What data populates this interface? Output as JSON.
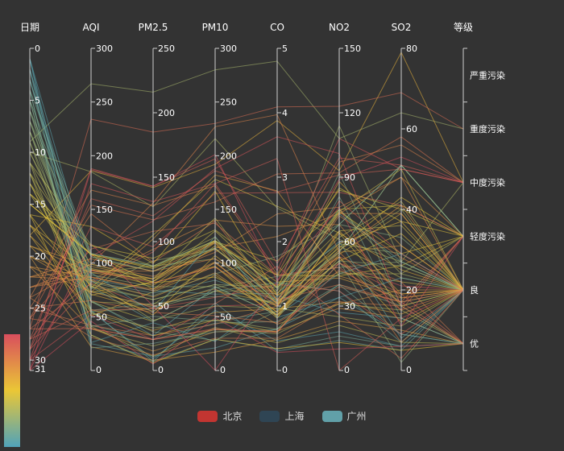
{
  "chart_data": {
    "type": "parallel",
    "title": "",
    "axes": [
      {
        "name": "日期",
        "min": 0,
        "max": 31,
        "inverse": true,
        "ticks": [
          0,
          5,
          10,
          15,
          20,
          25,
          30,
          31
        ]
      },
      {
        "name": "AQI",
        "min": 0,
        "max": 300,
        "ticks": [
          0,
          50,
          100,
          150,
          200,
          250,
          300
        ]
      },
      {
        "name": "PM2.5",
        "min": 0,
        "max": 250,
        "ticks": [
          0,
          50,
          100,
          150,
          200,
          250
        ]
      },
      {
        "name": "PM10",
        "min": 0,
        "max": 300,
        "ticks": [
          0,
          50,
          100,
          150,
          200,
          250,
          300
        ]
      },
      {
        "name": "CO",
        "min": 0,
        "max": 5,
        "ticks": [
          0,
          1,
          2,
          3,
          4,
          5
        ]
      },
      {
        "name": "NO2",
        "min": 0,
        "max": 150,
        "ticks": [
          0,
          30,
          60,
          90,
          120,
          150
        ]
      },
      {
        "name": "SO2",
        "min": 0,
        "max": 80,
        "ticks": [
          0,
          20,
          40,
          60,
          80
        ]
      },
      {
        "name": "等级",
        "type": "category",
        "categories": [
          "优",
          "良",
          "轻度污染",
          "中度污染",
          "重度污染",
          "严重污染"
        ]
      }
    ],
    "legend": [
      {
        "name": "北京",
        "color": "#c23531"
      },
      {
        "name": "上海",
        "color": "#2f4554"
      },
      {
        "name": "广州",
        "color": "#61a0a8"
      }
    ],
    "visual_map": {
      "dimension": "日期",
      "min": 0,
      "max": 31,
      "colors": [
        "#50a3ba",
        "#eac736",
        "#d94e5d"
      ]
    },
    "series": [
      {
        "name": "北京",
        "data": [
          [
            1,
            55,
            9,
            56,
            0.46,
            18,
            6,
            "良"
          ],
          [
            2,
            25,
            11,
            21,
            0.65,
            34,
            9,
            "优"
          ],
          [
            3,
            56,
            7,
            63,
            0.3,
            14,
            5,
            "良"
          ],
          [
            4,
            33,
            7,
            29,
            0.33,
            16,
            6,
            "优"
          ],
          [
            5,
            42,
            24,
            44,
            0.76,
            40,
            16,
            "优"
          ],
          [
            6,
            82,
            58,
            90,
            1.77,
            68,
            33,
            "良"
          ],
          [
            7,
            74,
            49,
            77,
            1.46,
            48,
            27,
            "良"
          ],
          [
            8,
            78,
            55,
            80,
            1.29,
            59,
            29,
            "良"
          ],
          [
            9,
            267,
            216,
            280,
            4.8,
            108,
            64,
            "重度污染"
          ],
          [
            10,
            185,
            127,
            216,
            2.52,
            61,
            27,
            "中度污染"
          ],
          [
            11,
            39,
            19,
            38,
            0.57,
            31,
            15,
            "优"
          ],
          [
            12,
            41,
            11,
            40,
            0.43,
            21,
            7,
            "优"
          ],
          [
            13,
            64,
            38,
            74,
            1.04,
            46,
            22,
            "良"
          ],
          [
            14,
            108,
            79,
            120,
            1.7,
            75,
            41,
            "轻度污染"
          ],
          [
            15,
            108,
            63,
            116,
            1.48,
            44,
            26,
            "轻度污染"
          ],
          [
            16,
            33,
            6,
            29,
            0.34,
            13,
            5,
            "优"
          ],
          [
            17,
            94,
            66,
            119,
            0.82,
            54,
            39,
            "良"
          ],
          [
            18,
            186,
            142,
            192,
            3.88,
            93,
            79,
            "中度污染"
          ],
          [
            19,
            57,
            31,
            54,
            0.96,
            32,
            14,
            "良"
          ],
          [
            20,
            22,
            8,
            17,
            0.48,
            23,
            10,
            "优"
          ],
          [
            21,
            39,
            15,
            36,
            0.61,
            29,
            13,
            "优"
          ],
          [
            22,
            94,
            69,
            114,
            2.08,
            73,
            39,
            "良"
          ],
          [
            23,
            99,
            73,
            110,
            2.43,
            76,
            48,
            "良"
          ],
          [
            24,
            31,
            12,
            30,
            0.5,
            32,
            16,
            "优"
          ],
          [
            25,
            42,
            27,
            43,
            1,
            53,
            22,
            "优"
          ],
          [
            26,
            154,
            117,
            157,
            3.05,
            92,
            58,
            "中度污染"
          ],
          [
            27,
            234,
            185,
            230,
            4.09,
            123,
            69,
            "重度污染"
          ],
          [
            28,
            160,
            120,
            186,
            2.77,
            91,
            50,
            "中度污染"
          ],
          [
            29,
            134,
            96,
            165,
            2.76,
            83,
            41,
            "轻度污染"
          ],
          [
            30,
            52,
            24,
            60,
            1.03,
            50,
            21,
            "良"
          ],
          [
            31,
            46,
            5,
            49,
            0.28,
            10,
            6,
            "优"
          ]
        ]
      },
      {
        "name": "上海",
        "data": [
          [
            1,
            26,
            37,
            27,
            1.163,
            27,
            13,
            "优"
          ],
          [
            2,
            85,
            62,
            71,
            1.195,
            60,
            8,
            "良"
          ],
          [
            3,
            78,
            38,
            74,
            1.363,
            37,
            7,
            "良"
          ],
          [
            4,
            21,
            21,
            36,
            0.634,
            40,
            9,
            "优"
          ],
          [
            5,
            41,
            42,
            46,
            0.915,
            81,
            13,
            "优"
          ],
          [
            6,
            56,
            52,
            69,
            1.067,
            92,
            16,
            "良"
          ],
          [
            7,
            64,
            30,
            28,
            0.924,
            51,
            2,
            "良"
          ],
          [
            8,
            55,
            48,
            74,
            1.236,
            75,
            26,
            "良"
          ],
          [
            9,
            76,
            85,
            113,
            1.237,
            114,
            27,
            "良"
          ],
          [
            10,
            91,
            81,
            104,
            1.041,
            56,
            40,
            "良"
          ],
          [
            11,
            84,
            39,
            60,
            0.964,
            25,
            11,
            "良"
          ],
          [
            12,
            64,
            51,
            101,
            0.862,
            58,
            23,
            "良"
          ],
          [
            13,
            70,
            69,
            120,
            1.198,
            65,
            36,
            "良"
          ],
          [
            14,
            77,
            105,
            178,
            2.549,
            64,
            16,
            "良"
          ],
          [
            15,
            109,
            68,
            87,
            0.996,
            74,
            29,
            "轻度污染"
          ],
          [
            16,
            73,
            68,
            97,
            0.905,
            51,
            34,
            "良"
          ],
          [
            17,
            54,
            27,
            47,
            0.592,
            53,
            12,
            "良"
          ],
          [
            18,
            51,
            61,
            97,
            0.811,
            65,
            19,
            "良"
          ],
          [
            19,
            91,
            71,
            121,
            1.374,
            43,
            18,
            "良"
          ],
          [
            20,
            73,
            102,
            182,
            2.787,
            44,
            19,
            "良"
          ],
          [
            21,
            73,
            50,
            76,
            0.717,
            31,
            20,
            "良"
          ],
          [
            22,
            84,
            94,
            140,
            2.238,
            68,
            18,
            "良"
          ],
          [
            23,
            93,
            77,
            104,
            1.165,
            53,
            7,
            "良"
          ],
          [
            24,
            99,
            130,
            227,
            3.97,
            55,
            15,
            "良"
          ],
          [
            25,
            146,
            84,
            139,
            1.094,
            40,
            17,
            "轻度污染"
          ],
          [
            26,
            113,
            108,
            137,
            1.481,
            48,
            15,
            "轻度污染"
          ],
          [
            27,
            81,
            48,
            62,
            1.619,
            26,
            3,
            "良"
          ],
          [
            28,
            56,
            48,
            68,
            1.336,
            37,
            9,
            "良"
          ],
          [
            29,
            82,
            92,
            174,
            3.29,
            0,
            13,
            "良"
          ],
          [
            30,
            106,
            116,
            188,
            3.628,
            101,
            16,
            "轻度污染"
          ],
          [
            31,
            118,
            50,
            0,
            1.383,
            76,
            11,
            "轻度污染"
          ]
        ]
      },
      {
        "name": "广州",
        "data": [
          [
            1,
            91,
            45,
            125,
            0.82,
            34,
            23,
            "良"
          ],
          [
            2,
            65,
            27,
            78,
            0.86,
            45,
            29,
            "良"
          ],
          [
            3,
            83,
            60,
            84,
            1.09,
            73,
            27,
            "良"
          ],
          [
            4,
            109,
            81,
            121,
            1.28,
            68,
            51,
            "轻度污染"
          ],
          [
            5,
            106,
            77,
            114,
            1.07,
            55,
            51,
            "轻度污染"
          ],
          [
            6,
            109,
            81,
            121,
            1.28,
            68,
            51,
            "轻度污染"
          ],
          [
            7,
            106,
            77,
            114,
            1.07,
            55,
            51,
            "轻度污染"
          ],
          [
            8,
            89,
            65,
            78,
            0.86,
            51,
            26,
            "良"
          ],
          [
            9,
            53,
            33,
            47,
            0.64,
            50,
            17,
            "良"
          ],
          [
            10,
            80,
            55,
            80,
            1.01,
            75,
            24,
            "良"
          ],
          [
            11,
            117,
            81,
            124,
            1.03,
            45,
            24,
            "轻度污染"
          ],
          [
            12,
            99,
            71,
            142,
            1.1,
            62,
            42,
            "良"
          ],
          [
            13,
            95,
            69,
            130,
            1.28,
            74,
            50,
            "良"
          ],
          [
            14,
            116,
            87,
            131,
            1.47,
            84,
            40,
            "轻度污染"
          ],
          [
            15,
            108,
            80,
            121,
            1.3,
            85,
            37,
            "轻度污染"
          ],
          [
            16,
            134,
            83,
            167,
            1.16,
            57,
            43,
            "轻度污染"
          ],
          [
            17,
            79,
            43,
            107,
            1.05,
            59,
            37,
            "良"
          ],
          [
            18,
            71,
            46,
            89,
            0.86,
            64,
            25,
            "良"
          ],
          [
            19,
            97,
            71,
            113,
            1.17,
            88,
            31,
            "良"
          ],
          [
            20,
            84,
            57,
            91,
            0.85,
            55,
            31,
            "良"
          ],
          [
            21,
            87,
            63,
            101,
            0.9,
            56,
            41,
            "良"
          ],
          [
            22,
            104,
            77,
            119,
            1.09,
            73,
            48,
            "轻度污染"
          ],
          [
            23,
            87,
            62,
            100,
            1,
            72,
            28,
            "良"
          ],
          [
            24,
            168,
            128,
            172,
            1.49,
            97,
            56,
            "中度污染"
          ],
          [
            25,
            65,
            45,
            51,
            0.74,
            39,
            17,
            "良"
          ],
          [
            26,
            39,
            24,
            38,
            0.61,
            47,
            17,
            "优"
          ],
          [
            27,
            39,
            24,
            39,
            0.59,
            50,
            19,
            "优"
          ],
          [
            28,
            93,
            68,
            96,
            1.05,
            79,
            29,
            "良"
          ],
          [
            29,
            188,
            143,
            197,
            1.66,
            99,
            51,
            "中度污染"
          ],
          [
            30,
            174,
            131,
            174,
            1.55,
            108,
            50,
            "中度污染"
          ],
          [
            31,
            187,
            143,
            201,
            1.39,
            89,
            53,
            "中度污染"
          ]
        ]
      }
    ]
  }
}
